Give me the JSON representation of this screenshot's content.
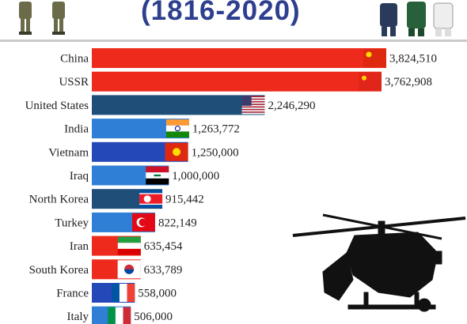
{
  "title": "(1816-2020)",
  "chart_data": {
    "type": "bar",
    "orientation": "horizontal",
    "categories": [
      "China",
      "USSR",
      "United States",
      "India",
      "Vietnam",
      "Iraq",
      "North Korea",
      "Turkey",
      "Iran",
      "South Korea",
      "France",
      "Italy"
    ],
    "values": [
      3824510,
      3762908,
      2246290,
      1263772,
      1250000,
      1000000,
      915442,
      822149,
      635454,
      633789,
      558000,
      506000
    ],
    "value_labels": [
      "3,824,510",
      "3,762,908",
      "2,246,290",
      "1,263,772",
      "1,250,000",
      "1,000,000",
      "915,442",
      "822,149",
      "635,454",
      "633,789",
      "558,000",
      "506,000"
    ],
    "bar_colors": [
      "#ee2a1c",
      "#ee2a1c",
      "#1f4e79",
      "#2f7fd6",
      "#2448b8",
      "#2f7fd6",
      "#1f4e79",
      "#2f7fd6",
      "#ee2a1c",
      "#ee2a1c",
      "#2448b8",
      "#2f7fd6"
    ],
    "flags": [
      "china-flag",
      "ussr-flag",
      "us-flag",
      "india-flag",
      "vietnam-flag",
      "iraq-flag",
      "north-korea-flag",
      "turkey-flag",
      "iran-flag",
      "south-korea-flag",
      "france-flag",
      "italy-flag"
    ],
    "xlim": [
      0,
      3824510
    ],
    "grid": false,
    "legend": "none"
  },
  "decorations": {
    "left_soldiers_icon": "soldiers-icon",
    "right_soldiers_icon": "uniformed-soldiers-icon",
    "helicopter_icon": "attack-helicopter-icon"
  }
}
